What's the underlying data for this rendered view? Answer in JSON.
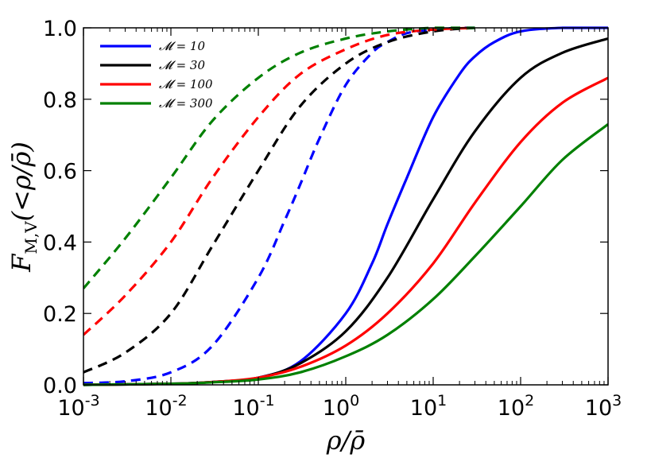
{
  "chart_data": {
    "type": "line",
    "title": "",
    "xlabel": "ρ/ρ̄",
    "ylabel": "F_{M,V}(<ρ/ρ̄)",
    "ylabel_parts": {
      "main": "F",
      "sub": "M,V",
      "rest": "(<ρ/ρ̄)"
    },
    "xscale": "log",
    "xlim": [
      0.001,
      1000
    ],
    "ylim": [
      0.0,
      1.0
    ],
    "x_ticks": [
      {
        "base": "10",
        "exp": "-3",
        "value": 0.001
      },
      {
        "base": "10",
        "exp": "-2",
        "value": 0.01
      },
      {
        "base": "10",
        "exp": "-1",
        "value": 0.1
      },
      {
        "base": "10",
        "exp": "0",
        "value": 1
      },
      {
        "base": "10",
        "exp": "1",
        "value": 10
      },
      {
        "base": "10",
        "exp": "2",
        "value": 100
      },
      {
        "base": "10",
        "exp": "3",
        "value": 1000
      }
    ],
    "y_ticks": [
      {
        "label": "0.0",
        "value": 0.0
      },
      {
        "label": "0.2",
        "value": 0.2
      },
      {
        "label": "0.4",
        "value": 0.4
      },
      {
        "label": "0.6",
        "value": 0.6
      },
      {
        "label": "0.8",
        "value": 0.8
      },
      {
        "label": "1.0",
        "value": 1.0
      }
    ],
    "grid": false,
    "legend_position": "top-left",
    "series": [
      {
        "name": "𝓜 = 10",
        "color": "#0000ff",
        "mass_weighted": {
          "line": "solid",
          "x": [
            0.001,
            0.01,
            0.03,
            0.1,
            0.3,
            1,
            2,
            3,
            5,
            10,
            20,
            30,
            50,
            100,
            300,
            1000
          ],
          "y": [
            0.0,
            0.003,
            0.008,
            0.02,
            0.065,
            0.2,
            0.34,
            0.45,
            0.58,
            0.75,
            0.87,
            0.92,
            0.96,
            0.99,
            1.0,
            1.0
          ]
        },
        "volume_weighted": {
          "line": "dashed",
          "x": [
            0.001,
            0.003,
            0.01,
            0.03,
            0.1,
            0.2,
            0.3,
            0.5,
            1,
            2,
            3,
            5,
            10,
            20,
            30
          ],
          "y": [
            0.005,
            0.01,
            0.035,
            0.11,
            0.3,
            0.46,
            0.56,
            0.69,
            0.84,
            0.93,
            0.96,
            0.985,
            0.995,
            1.0,
            1.0
          ]
        }
      },
      {
        "name": "𝓜 = 30",
        "color": "#000000",
        "mass_weighted": {
          "line": "solid",
          "x": [
            0.001,
            0.01,
            0.03,
            0.1,
            0.3,
            1,
            3,
            10,
            30,
            100,
            300,
            1000
          ],
          "y": [
            0.0,
            0.003,
            0.008,
            0.02,
            0.06,
            0.15,
            0.3,
            0.52,
            0.71,
            0.86,
            0.93,
            0.97
          ]
        },
        "volume_weighted": {
          "line": "dashed",
          "x": [
            0.001,
            0.003,
            0.01,
            0.03,
            0.1,
            0.3,
            1,
            3,
            10,
            30
          ],
          "y": [
            0.035,
            0.09,
            0.2,
            0.39,
            0.6,
            0.78,
            0.9,
            0.96,
            0.99,
            1.0
          ]
        }
      },
      {
        "name": "𝓜 = 100",
        "color": "#ff0000",
        "mass_weighted": {
          "line": "solid",
          "x": [
            0.001,
            0.01,
            0.03,
            0.1,
            0.3,
            1,
            3,
            10,
            30,
            100,
            300,
            1000
          ],
          "y": [
            0.0,
            0.003,
            0.008,
            0.02,
            0.05,
            0.11,
            0.2,
            0.34,
            0.51,
            0.68,
            0.79,
            0.86
          ]
        },
        "volume_weighted": {
          "line": "dashed",
          "x": [
            0.001,
            0.003,
            0.01,
            0.03,
            0.1,
            0.3,
            1,
            3,
            10,
            30
          ],
          "y": [
            0.14,
            0.25,
            0.4,
            0.58,
            0.75,
            0.87,
            0.94,
            0.98,
            0.995,
            1.0
          ]
        }
      },
      {
        "name": "𝓜 = 300",
        "color": "#008000",
        "mass_weighted": {
          "line": "solid",
          "x": [
            0.001,
            0.01,
            0.03,
            0.1,
            0.3,
            1,
            3,
            10,
            30,
            100,
            300,
            1000
          ],
          "y": [
            0.0,
            0.003,
            0.007,
            0.015,
            0.035,
            0.08,
            0.14,
            0.24,
            0.36,
            0.5,
            0.63,
            0.73
          ]
        },
        "volume_weighted": {
          "line": "dashed",
          "x": [
            0.001,
            0.003,
            0.01,
            0.03,
            0.1,
            0.3,
            1,
            3,
            10,
            30
          ],
          "y": [
            0.27,
            0.41,
            0.58,
            0.74,
            0.86,
            0.93,
            0.97,
            0.99,
            1.0,
            1.0
          ]
        }
      }
    ]
  }
}
